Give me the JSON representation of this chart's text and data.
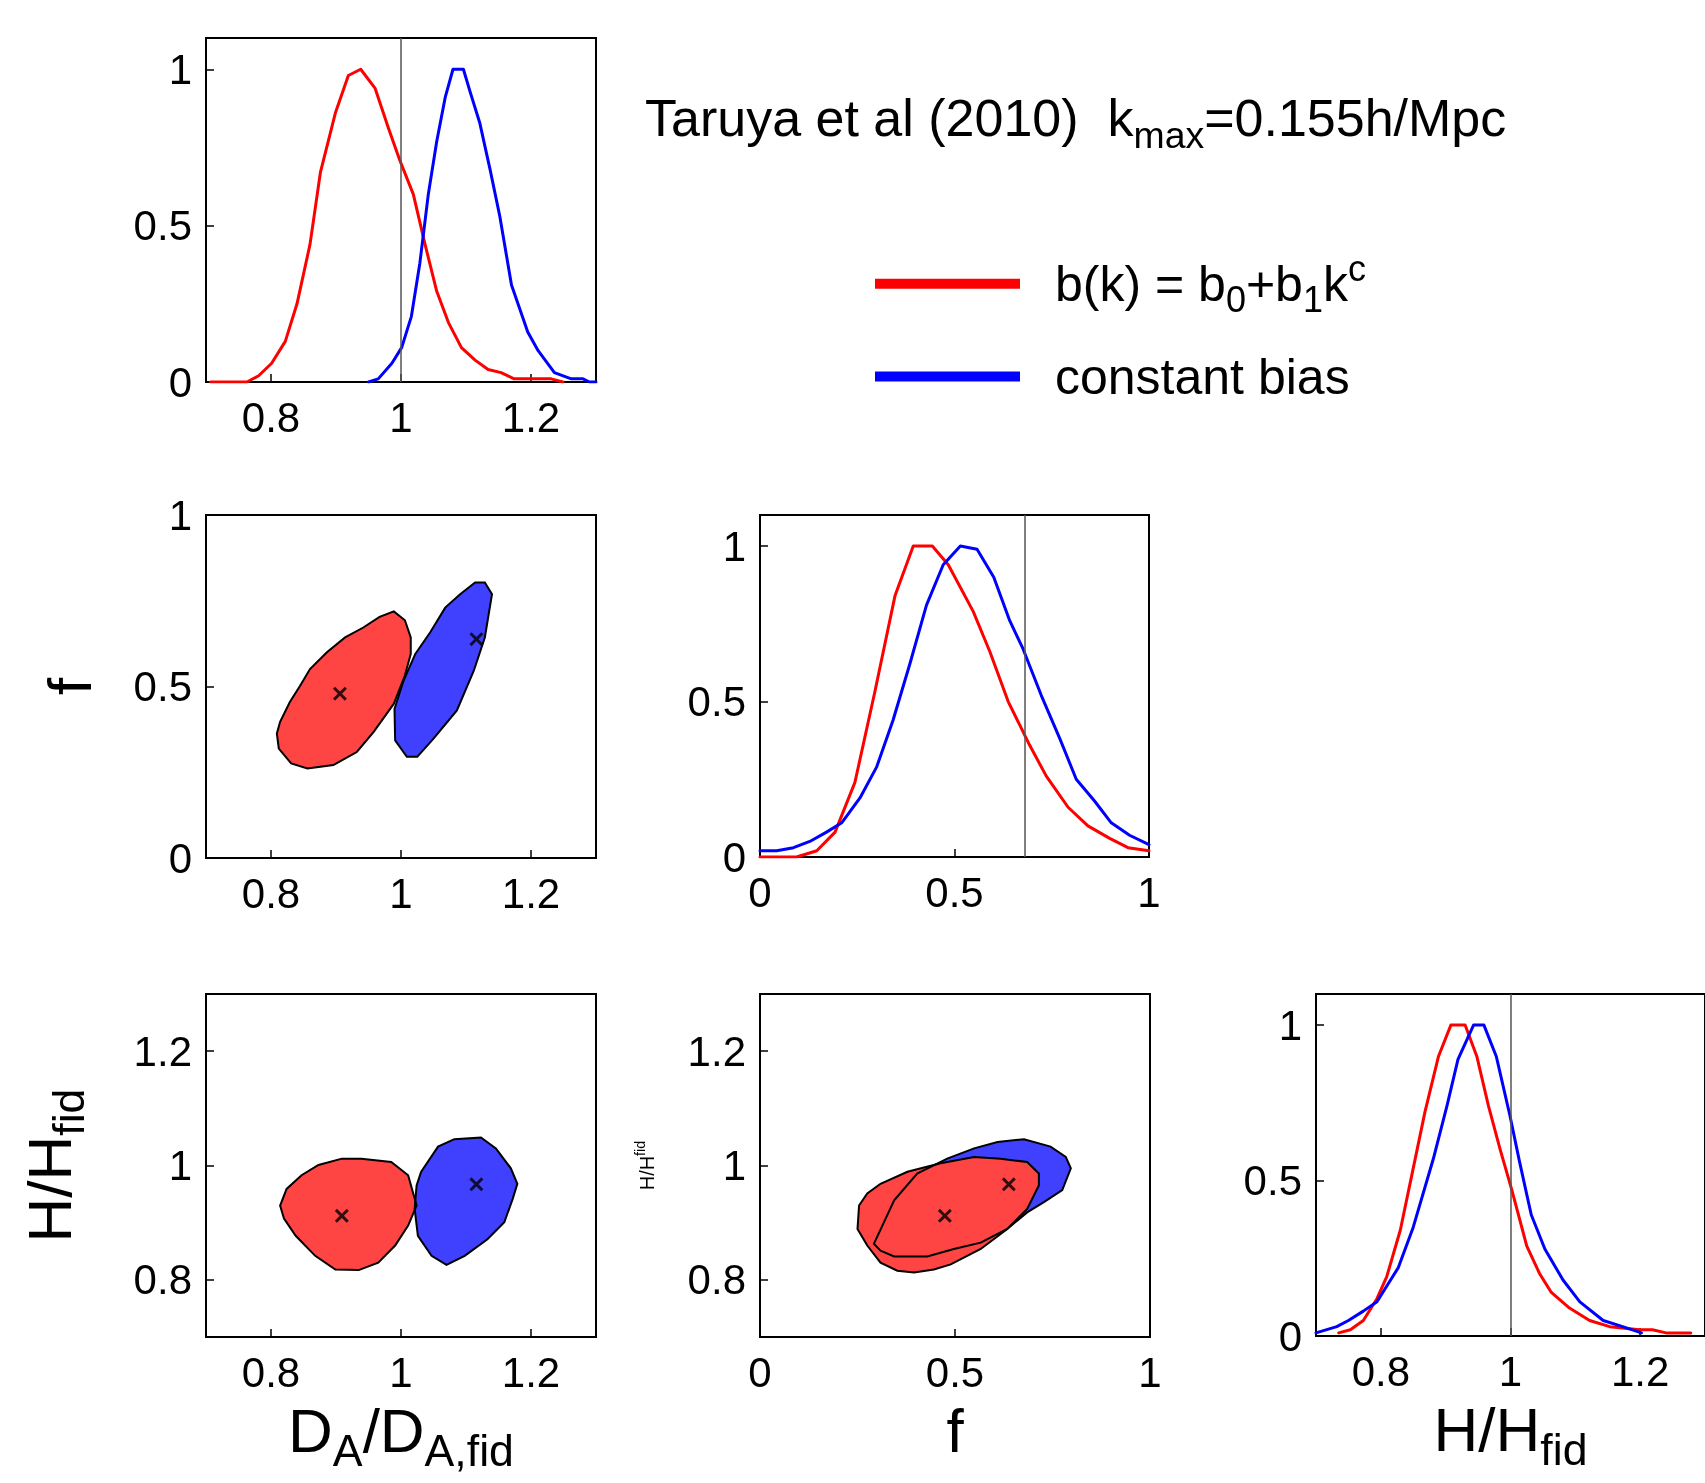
{
  "chart_data": [
    {
      "type": "line",
      "legend": "right",
      "grid": false,
      "xlim": [
        0.7,
        1.3
      ],
      "xticks": [
        0.8,
        1,
        1.2
      ],
      "ylim": [
        0,
        1.1
      ],
      "yticks": [
        0,
        0.5,
        1
      ],
      "ref_lines": [
        {
          "axis": "x",
          "value": 1,
          "color": "#555555"
        }
      ],
      "series": [
        {
          "name": "b(k) = b$_{0}$+b$_{1}$k$^{c}$",
          "color": "#ff0000",
          "x": [
            0.707,
            0.763,
            0.781,
            0.801,
            0.822,
            0.84,
            0.86,
            0.876,
            0.899,
            0.919,
            0.938,
            0.96,
            0.981,
            0.998,
            1.019,
            1.037,
            1.055,
            1.073,
            1.093,
            1.114,
            1.134,
            1.154,
            1.174,
            1.231,
            1.249
          ],
          "values": [
            0,
            0,
            0.02,
            0.06,
            0.13,
            0.25,
            0.44,
            0.67,
            0.86,
            0.98,
            1,
            0.94,
            0.81,
            0.71,
            0.6,
            0.44,
            0.29,
            0.19,
            0.11,
            0.07,
            0.04,
            0.03,
            0.01,
            0.01,
            0
          ]
        },
        {
          "name": "constant bias",
          "color": "#0000ff",
          "x": [
            0.95,
            0.965,
            0.986,
            1.001,
            1.016,
            1.029,
            1.042,
            1.055,
            1.068,
            1.08,
            1.096,
            1.106,
            1.121,
            1.137,
            1.152,
            1.17,
            1.195,
            1.211,
            1.236,
            1.262,
            1.28,
            1.29,
            1.3
          ],
          "values": [
            0,
            0.01,
            0.06,
            0.11,
            0.21,
            0.38,
            0.6,
            0.77,
            0.91,
            1,
            1,
            0.93,
            0.83,
            0.68,
            0.53,
            0.31,
            0.16,
            0.1,
            0.03,
            0.01,
            0.01,
            0,
            0
          ]
        }
      ]
    },
    {
      "type": "other",
      "title": "Taruya et al (2010)  k$_{max}$=0.155h/Mpc"
    },
    {
      "type": "area",
      "ylabel": "f",
      "grid": false,
      "xlim": [
        0.7,
        1.3
      ],
      "xticks": [
        0.8,
        1,
        1.2
      ],
      "ylim": [
        0,
        1
      ],
      "yticks": [
        0,
        0.5,
        1
      ],
      "series": [
        {
          "color": "#ff4444",
          "x": [
            0.809,
            0.814,
            0.829,
            0.845,
            0.86,
            0.886,
            0.914,
            0.942,
            0.967,
            0.989,
            1.006,
            1.015,
            1.015,
            1.006,
            0.989,
            0.958,
            0.932,
            0.896,
            0.856,
            0.831,
            0.812
          ],
          "values": [
            0.363,
            0.397,
            0.455,
            0.503,
            0.551,
            0.6,
            0.643,
            0.672,
            0.703,
            0.719,
            0.693,
            0.643,
            0.595,
            0.532,
            0.45,
            0.368,
            0.309,
            0.271,
            0.261,
            0.276,
            0.319
          ]
        },
        {
          "color": "#4040ff",
          "x": [
            0.99,
            0.991,
            1.009,
            1.025,
            1.05,
            1.086,
            1.112,
            1.129,
            1.14,
            1.129,
            1.114,
            1.091,
            1.068,
            1.045,
            1.022,
            1.004
          ],
          "values": [
            0.435,
            0.343,
            0.295,
            0.295,
            0.348,
            0.43,
            0.546,
            0.643,
            0.769,
            0.803,
            0.803,
            0.769,
            0.73,
            0.658,
            0.595,
            0.517
          ]
        },
        {
          "type": "scatter",
          "marker": "cross",
          "color": "#000000",
          "x": [
            0.906,
            1.116
          ],
          "values": [
            0.479,
            0.638
          ]
        }
      ]
    },
    {
      "type": "line",
      "grid": false,
      "xlim": [
        0,
        1
      ],
      "xticks": [
        0,
        0.5,
        1
      ],
      "ylim": [
        0,
        1.1
      ],
      "yticks": [
        0,
        0.5,
        1
      ],
      "ref_lines": [
        {
          "axis": "x",
          "value": 0.68,
          "color": "#555555"
        }
      ],
      "series": [
        {
          "color": "#ff0000",
          "x": [
            0,
            0.094,
            0.146,
            0.193,
            0.244,
            0.295,
            0.347,
            0.394,
            0.443,
            0.484,
            0.548,
            0.591,
            0.638,
            0.693,
            0.736,
            0.792,
            0.843,
            0.899,
            0.946,
            1
          ],
          "values": [
            0,
            0,
            0.02,
            0.08,
            0.24,
            0.53,
            0.84,
            1,
            1,
            0.94,
            0.79,
            0.66,
            0.5,
            0.36,
            0.26,
            0.16,
            0.1,
            0.06,
            0.03,
            0.02
          ]
        },
        {
          "color": "#0000ff",
          "x": [
            0,
            0.043,
            0.086,
            0.128,
            0.171,
            0.21,
            0.257,
            0.3,
            0.342,
            0.385,
            0.428,
            0.471,
            0.515,
            0.558,
            0.601,
            0.642,
            0.676,
            0.723,
            0.771,
            0.813,
            0.86,
            0.903,
            0.95,
            1
          ],
          "values": [
            0.02,
            0.02,
            0.03,
            0.05,
            0.08,
            0.11,
            0.19,
            0.29,
            0.44,
            0.62,
            0.81,
            0.94,
            1,
            0.99,
            0.9,
            0.76,
            0.67,
            0.52,
            0.38,
            0.25,
            0.18,
            0.11,
            0.07,
            0.04
          ]
        }
      ]
    },
    {
      "type": "area",
      "xlabel": "D$_{A}$/D$_{A,fid}$",
      "ylabel": "H/H$_{fid}$",
      "grid": false,
      "xlim": [
        0.7,
        1.3
      ],
      "xticks": [
        0.8,
        1,
        1.2
      ],
      "ylim": [
        0.7,
        1.3
      ],
      "yticks": [
        0.8,
        1,
        1.2
      ],
      "series": [
        {
          "color": "#ff4444",
          "x": [
            0.814,
            0.824,
            0.847,
            0.873,
            0.909,
            0.939,
            0.985,
            1.011,
            1.024,
            1.011,
            0.991,
            0.965,
            0.935,
            0.899,
            0.868,
            0.838,
            0.82
          ],
          "values": [
            0.93,
            0.959,
            0.983,
            1.001,
            1.012,
            1.012,
            1.006,
            0.983,
            0.93,
            0.895,
            0.86,
            0.83,
            0.817,
            0.818,
            0.842,
            0.877,
            0.907
          ]
        },
        {
          "color": "#4040ff",
          "x": [
            1.031,
            1.057,
            1.082,
            1.123,
            1.146,
            1.169,
            1.179,
            1.172,
            1.159,
            1.133,
            1.098,
            1.07,
            1.047,
            1.026,
            1.021,
            1.024
          ],
          "values": [
            0.989,
            1.033,
            1.046,
            1.049,
            1.03,
            0.995,
            0.968,
            0.942,
            0.901,
            0.871,
            0.842,
            0.826,
            0.842,
            0.877,
            0.924,
            0.965
          ]
        },
        {
          "type": "scatter",
          "marker": "cross",
          "color": "#000000",
          "x": [
            0.909,
            1.116
          ],
          "values": [
            0.912,
            0.967
          ]
        }
      ]
    },
    {
      "type": "area",
      "xlabel": "f",
      "ylabel": "H/H$^{fid}$",
      "grid": false,
      "xlim": [
        0,
        1
      ],
      "xticks": [
        0,
        0.5,
        1
      ],
      "ylim": [
        0.7,
        1.3
      ],
      "yticks": [
        0.8,
        1,
        1.2
      ],
      "series": [
        {
          "color": "#4040ff",
          "x": [
            0.292,
            0.344,
            0.403,
            0.48,
            0.549,
            0.609,
            0.677,
            0.745,
            0.784,
            0.797,
            0.775,
            0.728,
            0.685,
            0.634,
            0.566,
            0.497,
            0.429,
            0.344,
            0.309
          ],
          "values": [
            0.863,
            0.939,
            0.986,
            1.012,
            1.03,
            1.041,
            1.046,
            1.033,
            1.015,
            0.995,
            0.957,
            0.936,
            0.918,
            0.889,
            0.865,
            0.854,
            0.841,
            0.841,
            0.851
          ]
        },
        {
          "color": "#ff4444",
          "x": [
            0.25,
            0.254,
            0.275,
            0.309,
            0.378,
            0.463,
            0.549,
            0.617,
            0.685,
            0.715,
            0.715,
            0.685,
            0.634,
            0.566,
            0.489,
            0.446,
            0.395,
            0.352,
            0.309,
            0.275
          ],
          "values": [
            0.889,
            0.93,
            0.951,
            0.968,
            0.989,
            1.004,
            1.015,
            1.012,
            1.006,
            0.986,
            0.965,
            0.924,
            0.889,
            0.854,
            0.827,
            0.818,
            0.813,
            0.816,
            0.83,
            0.86
          ]
        },
        {
          "type": "scatter",
          "marker": "cross",
          "color": "#000000",
          "x": [
            0.474,
            0.638
          ],
          "values": [
            0.912,
            0.967
          ]
        }
      ]
    },
    {
      "type": "line",
      "xlabel": "H/H$_{fid}$",
      "grid": false,
      "xlim": [
        0.7,
        1.3
      ],
      "xticks": [
        0.8,
        1,
        1.2
      ],
      "ylim": [
        0,
        1.1
      ],
      "yticks": [
        0,
        0.5,
        1
      ],
      "ref_lines": [
        {
          "axis": "x",
          "value": 1,
          "color": "#555555"
        }
      ],
      "series": [
        {
          "color": "#ff0000",
          "x": [
            0.735,
            0.753,
            0.773,
            0.794,
            0.809,
            0.83,
            0.848,
            0.868,
            0.889,
            0.908,
            0.93,
            0.948,
            0.966,
            0.984,
            1.002,
            1.025,
            1.045,
            1.063,
            1.091,
            1.122,
            1.153,
            1.199,
            1.219,
            1.24,
            1.278
          ],
          "values": [
            0.01,
            0.02,
            0.05,
            0.12,
            0.19,
            0.34,
            0.52,
            0.72,
            0.9,
            1,
            1,
            0.9,
            0.74,
            0.6,
            0.47,
            0.29,
            0.2,
            0.14,
            0.09,
            0.05,
            0.03,
            0.02,
            0.02,
            0.01,
            0.01
          ]
        },
        {
          "color": "#0000ff",
          "x": [
            0.7,
            0.732,
            0.75,
            0.773,
            0.794,
            0.827,
            0.85,
            0.881,
            0.902,
            0.919,
            0.943,
            0.959,
            0.978,
            0.999,
            1.014,
            1.032,
            1.053,
            1.081,
            1.107,
            1.143,
            1.173,
            1.202
          ],
          "values": [
            0.01,
            0.03,
            0.05,
            0.08,
            0.11,
            0.22,
            0.35,
            0.57,
            0.74,
            0.89,
            1,
            1,
            0.9,
            0.71,
            0.56,
            0.39,
            0.28,
            0.18,
            0.11,
            0.05,
            0.03,
            0.01
          ]
        }
      ]
    }
  ]
}
